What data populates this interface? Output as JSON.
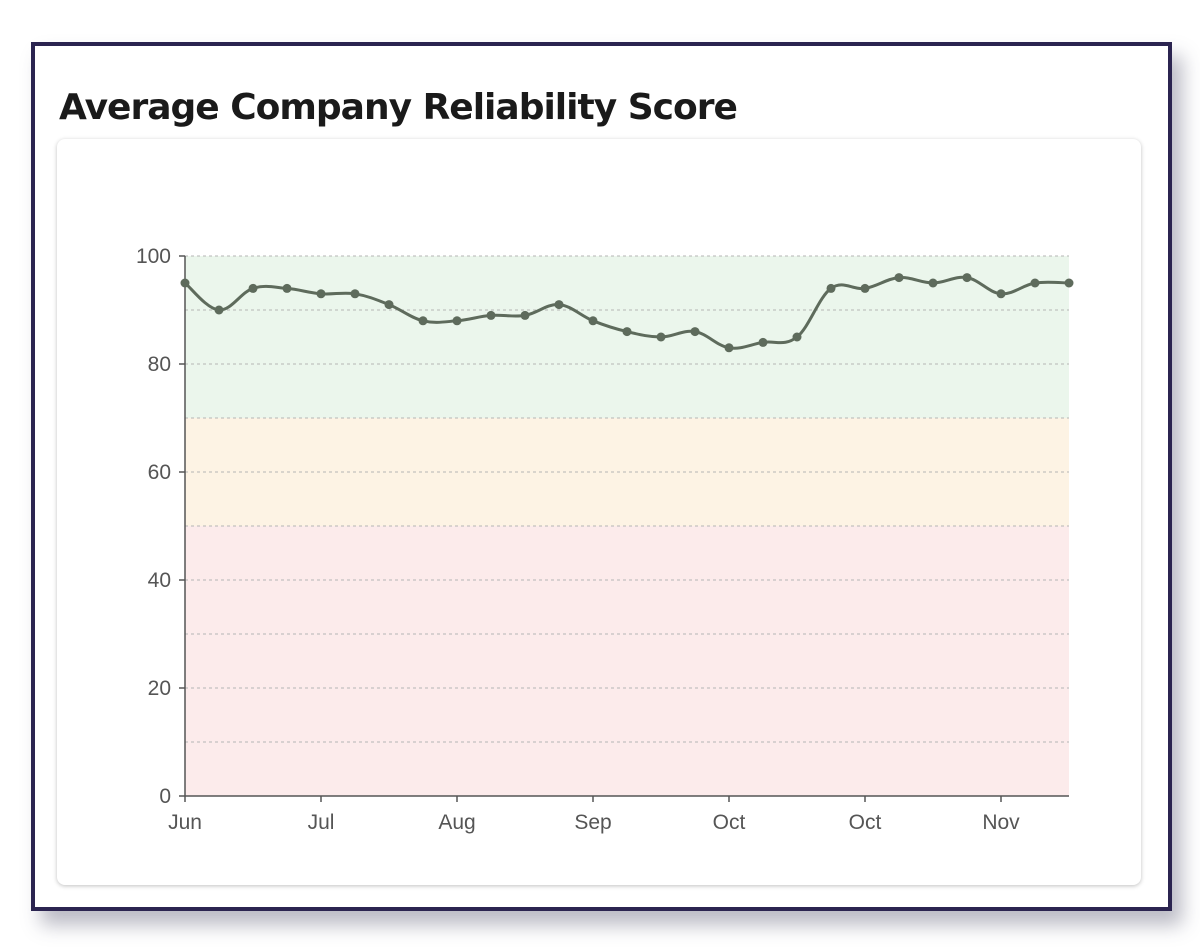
{
  "title": "Average Company Reliability Score",
  "colors": {
    "line": "#5e6b5c",
    "band_good": "#ebf6ec",
    "band_warning": "#fdf3e4",
    "band_bad": "#fcebeb",
    "grid": "#b5b5b5",
    "axis": "#555555",
    "frame": "#2b2450"
  },
  "chart_data": {
    "type": "line",
    "title": "Average Company Reliability Score",
    "xlabel": "",
    "ylabel": "",
    "ylim": [
      0,
      100
    ],
    "yticks": [
      0,
      20,
      40,
      60,
      80,
      100
    ],
    "grid_lines": [
      0,
      10,
      20,
      30,
      40,
      50,
      60,
      70,
      80,
      90,
      100
    ],
    "grid": true,
    "legend": "none",
    "x_tick_labels": [
      {
        "label": "Jun",
        "index": 0
      },
      {
        "label": "Jul",
        "index": 4
      },
      {
        "label": "Aug",
        "index": 8
      },
      {
        "label": "Sep",
        "index": 12
      },
      {
        "label": "Oct",
        "index": 16
      },
      {
        "label": "Oct",
        "index": 20
      },
      {
        "label": "Nov",
        "index": 24
      }
    ],
    "bands": [
      {
        "from": 70,
        "to": 100,
        "color": "#ebf6ec"
      },
      {
        "from": 50,
        "to": 70,
        "color": "#fdf3e4"
      },
      {
        "from": 0,
        "to": 50,
        "color": "#fcebeb"
      }
    ],
    "series": [
      {
        "values": [
          95,
          90,
          94,
          94,
          93,
          93,
          91,
          88,
          88,
          89,
          89,
          91,
          88,
          86,
          85,
          86,
          83,
          84,
          85,
          94,
          94,
          96,
          95,
          96,
          93,
          95,
          95
        ]
      }
    ]
  }
}
